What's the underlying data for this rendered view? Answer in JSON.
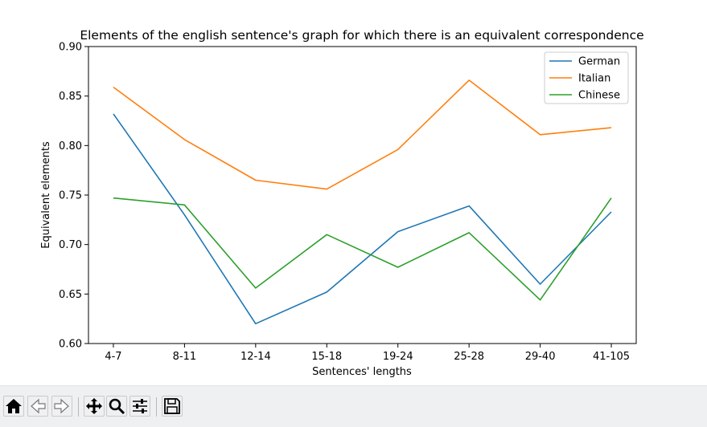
{
  "chart_data": {
    "type": "line",
    "title": "Elements of the english sentence's graph for which there is an equivalent correspondence",
    "xlabel": "Sentences' lengths",
    "ylabel": "Equivalent elements",
    "categories": [
      "4-7",
      "8-11",
      "12-14",
      "15-18",
      "19-24",
      "25-28",
      "29-40",
      "41-105"
    ],
    "ylim": [
      0.6,
      0.9
    ],
    "yticks": [
      "0.60",
      "0.65",
      "0.70",
      "0.75",
      "0.80",
      "0.85",
      "0.90"
    ],
    "grid": false,
    "legend_position": "top-right",
    "series": [
      {
        "name": "German",
        "color": "#1f77b4",
        "values": [
          0.832,
          0.73,
          0.62,
          0.652,
          0.713,
          0.739,
          0.66,
          0.733
        ]
      },
      {
        "name": "Italian",
        "color": "#ff7f0e",
        "values": [
          0.859,
          0.806,
          0.765,
          0.756,
          0.796,
          0.866,
          0.811,
          0.818
        ]
      },
      {
        "name": "Chinese",
        "color": "#2ca02c",
        "values": [
          0.747,
          0.74,
          0.656,
          0.71,
          0.677,
          0.712,
          0.644,
          0.747
        ]
      }
    ]
  },
  "toolbar": {
    "buttons": [
      {
        "name": "home-button",
        "icon": "home-icon"
      },
      {
        "name": "back-button",
        "icon": "arrow-left-icon"
      },
      {
        "name": "forward-button",
        "icon": "arrow-right-icon"
      },
      {
        "name": "pan-button",
        "icon": "move-icon"
      },
      {
        "name": "zoom-button",
        "icon": "magnifier-icon"
      },
      {
        "name": "configure-subplots-button",
        "icon": "sliders-icon"
      },
      {
        "name": "save-button",
        "icon": "floppy-disk-icon"
      }
    ]
  }
}
